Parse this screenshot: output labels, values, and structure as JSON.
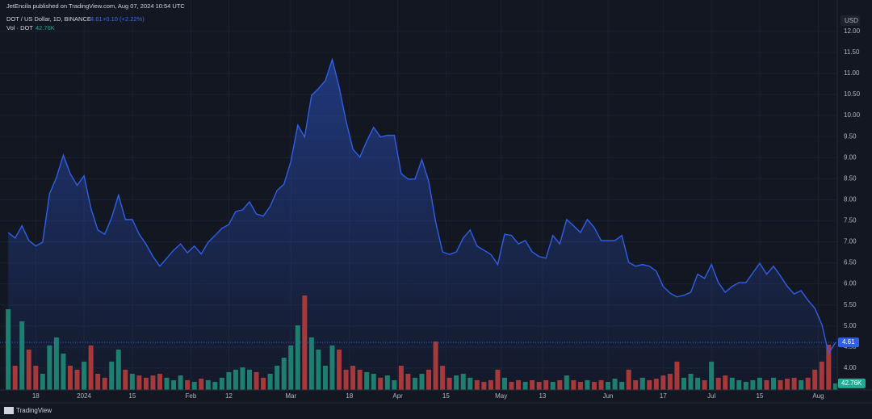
{
  "chart_data": {
    "type": "line",
    "title": "JetEncila published on TradingView.com, Aug 07, 2024 10:54 UTC",
    "change": "+0.10 (+2.22%)",
    "y_label": "USD",
    "brand": "TradingView",
    "x": [
      0,
      2,
      4,
      6,
      8,
      10,
      12,
      14,
      16,
      18,
      20,
      22,
      24,
      26,
      28,
      30,
      32,
      34,
      36,
      38,
      40,
      42,
      44,
      46,
      48,
      50,
      52,
      54,
      56,
      58,
      60,
      62,
      64,
      66,
      68,
      70,
      72,
      74,
      76,
      78,
      80,
      82,
      84,
      86,
      88,
      90,
      92,
      94,
      96,
      98,
      100,
      102,
      104,
      106,
      108,
      110,
      112,
      114,
      116,
      118,
      120,
      122,
      124,
      126,
      128,
      130,
      132,
      134,
      136,
      138,
      140,
      142,
      144,
      146,
      148,
      150,
      152,
      154,
      156,
      158,
      160,
      162,
      164,
      166,
      168,
      170,
      172,
      174,
      176,
      178,
      180,
      182,
      184,
      186,
      188,
      190,
      192,
      194,
      196,
      198,
      200,
      202,
      204,
      206,
      208,
      210,
      212,
      214,
      216,
      218,
      220,
      222,
      224,
      226,
      228,
      230,
      232,
      234,
      236,
      238,
      240
    ],
    "xlim": [
      -0.5,
      240.5
    ],
    "xticks": [
      {
        "value": 8,
        "label": "18"
      },
      {
        "value": 22,
        "label": "2024"
      },
      {
        "value": 36,
        "label": "15"
      },
      {
        "value": 53,
        "label": "Feb"
      },
      {
        "value": 64,
        "label": "12"
      },
      {
        "value": 82,
        "label": "Mar"
      },
      {
        "value": 99,
        "label": "18"
      },
      {
        "value": 113,
        "label": "Apr"
      },
      {
        "value": 127,
        "label": "15"
      },
      {
        "value": 143,
        "label": "May"
      },
      {
        "value": 155,
        "label": "13"
      },
      {
        "value": 174,
        "label": "Jun"
      },
      {
        "value": 190,
        "label": "17"
      },
      {
        "value": 204,
        "label": "Jul"
      },
      {
        "value": 218,
        "label": "15"
      },
      {
        "value": 235,
        "label": "Aug"
      }
    ],
    "ylim": [
      3.48,
      12.4
    ],
    "yticks": [
      {
        "value": 4,
        "label": "4.00"
      },
      {
        "value": 4.5,
        "label": "4.50"
      },
      {
        "value": 5,
        "label": "5.00"
      },
      {
        "value": 5.5,
        "label": "5.50"
      },
      {
        "value": 6,
        "label": "6.00"
      },
      {
        "value": 6.5,
        "label": "6.50"
      },
      {
        "value": 7,
        "label": "7.00"
      },
      {
        "value": 7.5,
        "label": "7.50"
      },
      {
        "value": 8,
        "label": "8.00"
      },
      {
        "value": 8.5,
        "label": "8.50"
      },
      {
        "value": 9,
        "label": "9.00"
      },
      {
        "value": 9.5,
        "label": "9.50"
      },
      {
        "value": 10,
        "label": "10.00"
      },
      {
        "value": 10.5,
        "label": "10.50"
      },
      {
        "value": 11,
        "label": "11.00"
      },
      {
        "value": 11.5,
        "label": "11.50"
      },
      {
        "value": 12,
        "label": "12.00"
      }
    ],
    "y2lim": [
      0,
      2464
    ],
    "grid": true,
    "series": [
      {
        "name": "DOT / US Dollar, 1D, BINANCE",
        "color": "#2f5fe8",
        "values": [
          7.22,
          7.09,
          7.38,
          7.03,
          6.9,
          6.99,
          8.14,
          8.53,
          9.06,
          8.62,
          8.34,
          8.57,
          7.8,
          7.28,
          7.18,
          7.57,
          8.11,
          7.53,
          7.53,
          7.18,
          6.94,
          6.65,
          6.42,
          6.61,
          6.8,
          6.95,
          6.74,
          6.9,
          6.71,
          6.99,
          7.15,
          7.32,
          7.41,
          7.72,
          7.76,
          7.95,
          7.66,
          7.61,
          7.84,
          8.22,
          8.37,
          8.91,
          9.77,
          9.49,
          10.48,
          10.64,
          10.83,
          11.33,
          10.68,
          9.87,
          9.2,
          9.01,
          9.39,
          9.72,
          9.49,
          9.53,
          9.53,
          8.62,
          8.49,
          8.49,
          8.95,
          8.43,
          7.47,
          6.76,
          6.7,
          6.76,
          7.09,
          7.28,
          6.9,
          6.8,
          6.7,
          6.46,
          7.18,
          7.15,
          6.95,
          7.03,
          6.76,
          6.65,
          6.61,
          7.15,
          6.95,
          7.53,
          7.38,
          7.22,
          7.53,
          7.34,
          7.03,
          7.03,
          7.03,
          7.15,
          6.51,
          6.42,
          6.46,
          6.42,
          6.3,
          5.94,
          5.78,
          5.69,
          5.73,
          5.8,
          6.23,
          6.13,
          6.46,
          6.03,
          5.8,
          5.94,
          6.03,
          6.03,
          6.26,
          6.49,
          6.23,
          6.42,
          6.19,
          5.94,
          5.76,
          5.84,
          5.61,
          5.42,
          5.04,
          4.35,
          4.61
        ]
      },
      {
        "name": "Vol · DOT",
        "axis": "y2",
        "color_up": "#1e7f70",
        "color_down": "#a8393b",
        "label_color": "#22ab94",
        "values": [
          530,
          159,
          450,
          265,
          159,
          106,
          292,
          345,
          239,
          159,
          133,
          186,
          292,
          106,
          80,
          186,
          265,
          133,
          106,
          95,
          80,
          95,
          106,
          80,
          64,
          95,
          64,
          53,
          74,
          64,
          53,
          80,
          117,
          133,
          148,
          133,
          117,
          80,
          106,
          159,
          212,
          292,
          424,
          620,
          345,
          265,
          159,
          292,
          265,
          133,
          159,
          133,
          117,
          106,
          80,
          95,
          64,
          159,
          106,
          80,
          106,
          133,
          318,
          159,
          80,
          95,
          106,
          80,
          64,
          53,
          64,
          133,
          80,
          53,
          64,
          53,
          64,
          53,
          64,
          53,
          64,
          95,
          64,
          53,
          64,
          53,
          64,
          53,
          74,
          53,
          133,
          64,
          80,
          64,
          74,
          95,
          106,
          186,
          80,
          106,
          80,
          64,
          186,
          80,
          95,
          80,
          64,
          53,
          64,
          80,
          64,
          80,
          64,
          74,
          80,
          64,
          80,
          133,
          186,
          297,
          42.76
        ],
        "value_labels": [
          null,
          null,
          null,
          null,
          null,
          null,
          null,
          null,
          null,
          null,
          null,
          null,
          null,
          null,
          null,
          null,
          null,
          null,
          null,
          null,
          null,
          null,
          null,
          null,
          null,
          null,
          null,
          null,
          null,
          null,
          null,
          null,
          null,
          null,
          null,
          null,
          null,
          null,
          null,
          null,
          null,
          null,
          null,
          null,
          null,
          null,
          null,
          null,
          null,
          null,
          null,
          null,
          null,
          null,
          null,
          null,
          null,
          null,
          null,
          null,
          null,
          null,
          null,
          null,
          null,
          null,
          null,
          null,
          null,
          null,
          null,
          null,
          null,
          null,
          null,
          null,
          null,
          null,
          null,
          null,
          null,
          null,
          null,
          null,
          null,
          null,
          null,
          null,
          null,
          null,
          null,
          null,
          null,
          null,
          null,
          null,
          null,
          null,
          null,
          null,
          null,
          null,
          null,
          null,
          null,
          null,
          null,
          null,
          null,
          null,
          null,
          null,
          null,
          null,
          null,
          null,
          null,
          null,
          null,
          null,
          "42.76K"
        ]
      }
    ]
  }
}
